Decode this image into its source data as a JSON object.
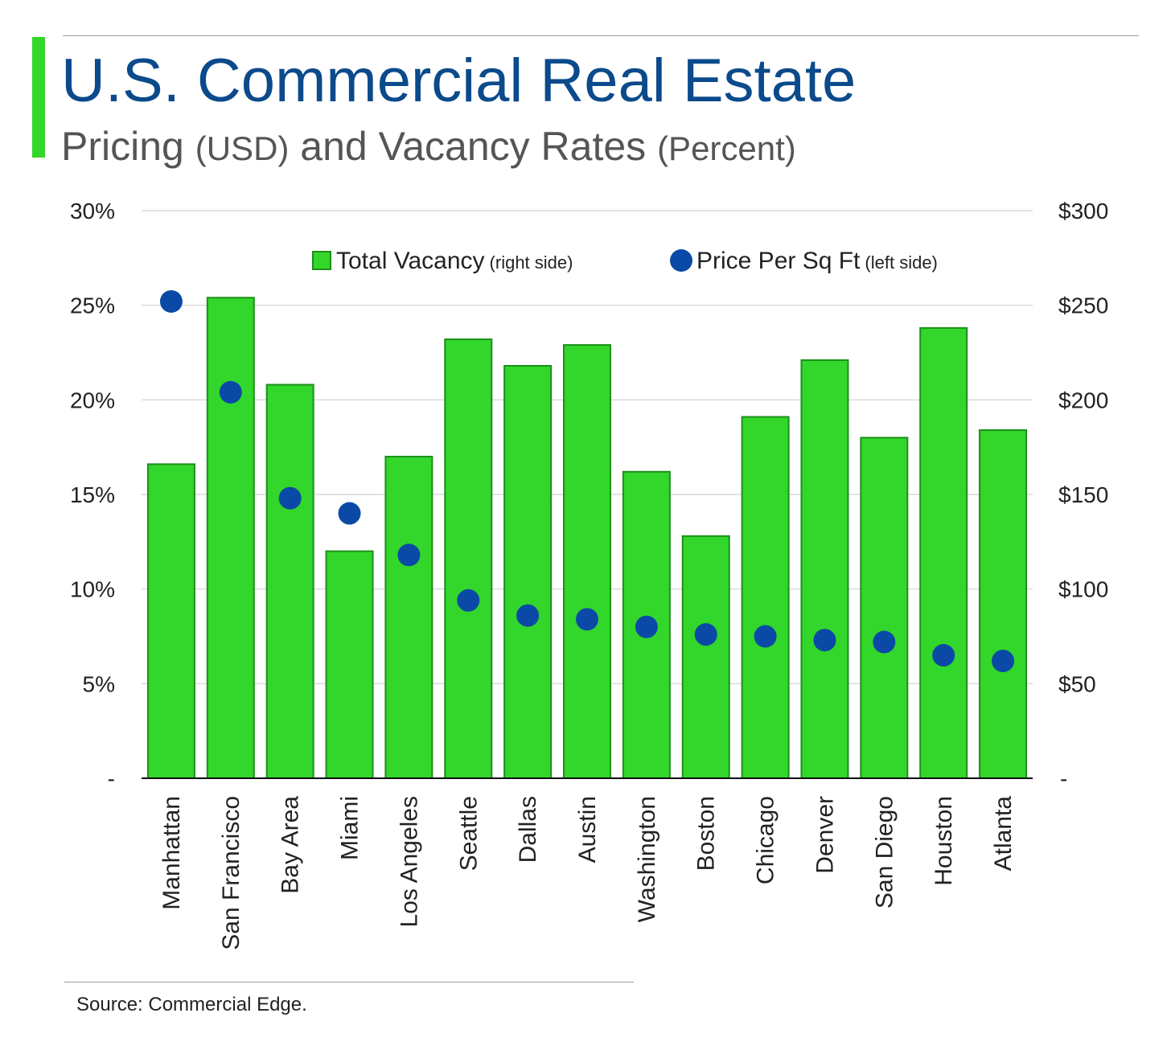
{
  "header": {
    "title": "U.S. Commercial Real Estate",
    "subtitle_pre": "Pricing ",
    "subtitle_usd": "(USD)",
    "subtitle_mid": " and Vacancy Rates ",
    "subtitle_pct": "(Percent)"
  },
  "colors": {
    "title": "#0b4a8b",
    "accent": "#33d62a",
    "bar_fill": "#33d62a",
    "bar_stroke": "#1d8f1a",
    "dot": "#0a4aa6",
    "grid": "#d0d0d0",
    "axis": "#111111",
    "text": "#222222"
  },
  "chart_data": {
    "type": "bar",
    "categories": [
      "Manhattan",
      "San Francisco",
      "Bay Area",
      "Miami",
      "Los Angeles",
      "Seattle",
      "Dallas",
      "Austin",
      "Washington",
      "Boston",
      "Chicago",
      "Denver",
      "San Diego",
      "Houston",
      "Atlanta"
    ],
    "series": [
      {
        "name": "Total Vacancy",
        "name_note": "(right side)",
        "type": "bar",
        "axis": "left",
        "values": [
          16.6,
          25.4,
          20.8,
          12.0,
          17.0,
          23.2,
          21.8,
          22.9,
          16.2,
          12.8,
          19.1,
          22.1,
          18.0,
          23.8,
          18.4
        ]
      },
      {
        "name": "Price Per Sq Ft",
        "name_note": "(left side)",
        "type": "scatter",
        "axis": "right",
        "values": [
          252,
          204,
          148,
          140,
          118,
          94,
          86,
          84,
          80,
          76,
          75,
          73,
          72,
          65,
          62
        ]
      }
    ],
    "y_left": {
      "min": 0,
      "max": 30,
      "ticks": [
        "-",
        "5%",
        "10%",
        "15%",
        "20%",
        "25%",
        "30%"
      ]
    },
    "y_right": {
      "min": 0,
      "max": 300,
      "ticks": [
        "-",
        "$50",
        "$100",
        "$150",
        "$200",
        "$250",
        "$300"
      ]
    },
    "grid": true,
    "legend_position": "top-right"
  },
  "source": "Source: Commercial Edge."
}
